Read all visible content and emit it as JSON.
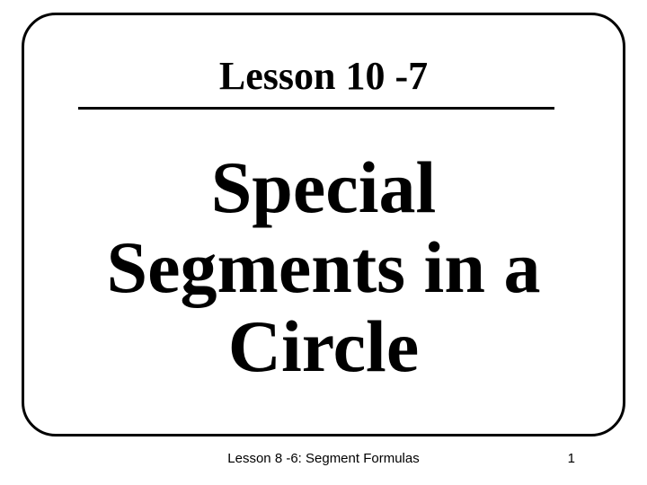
{
  "header": {
    "lesson_label": "Lesson 10 -7"
  },
  "main": {
    "title_line1": "Special",
    "title_line2": "Segments in a",
    "title_line3": "Circle"
  },
  "footer": {
    "text": "Lesson 8 -6: Segment Formulas",
    "page_number": "1"
  },
  "style": {
    "background_color": "#ffffff",
    "frame_border_color": "#000000",
    "frame_border_width": 3,
    "frame_border_radius": 38,
    "header_fontsize": 44,
    "title_fontsize": 82,
    "footer_fontsize": 15,
    "text_color": "#000000",
    "rule_color": "#000000",
    "rule_width": 3
  }
}
